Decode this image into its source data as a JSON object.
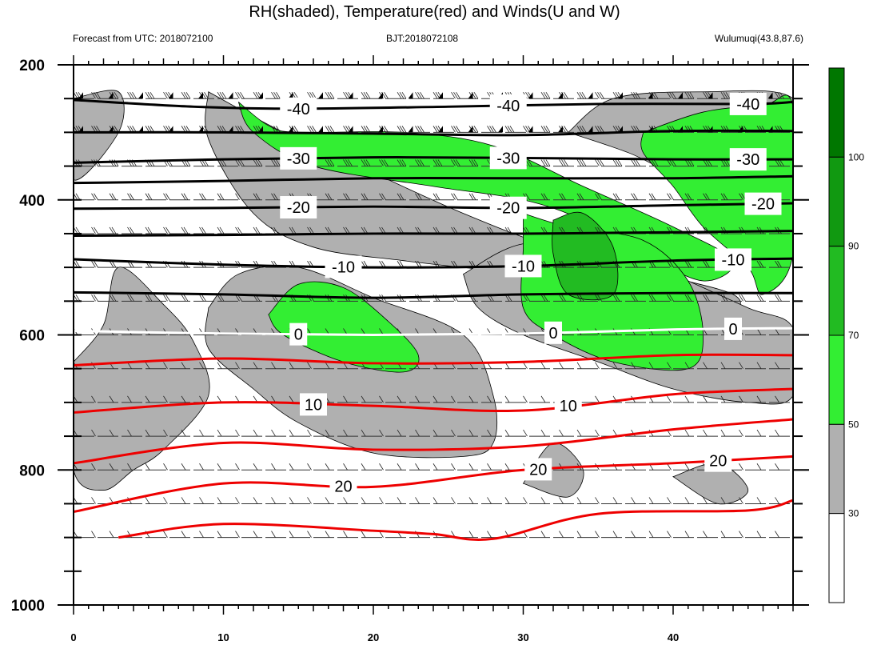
{
  "title": "RH(shaded), Temperature(red) and Winds(U and W)",
  "subtitle_left": "Forecast from UTC: 2018072100",
  "subtitle_center": "BJT:2018072108",
  "subtitle_right": "Wulumuqi(43.8,87.6)",
  "colors": {
    "rh_30_50": "#b0b0b0",
    "rh_50_70": "#33ee33",
    "rh_70_90": "#22bb22",
    "rh_90_100": "#119911",
    "temperature_warm": "#ee0000",
    "temperature_cold": "#000000",
    "zero_isotherm": "#ffffff"
  },
  "chart_data": {
    "type": "contour",
    "x_ticks": [
      0,
      10,
      20,
      30,
      40
    ],
    "xlim": [
      0,
      48
    ],
    "y_ticks": [
      200,
      400,
      600,
      800,
      1000
    ],
    "ylim": [
      1000,
      200
    ],
    "colorbar": {
      "levels": [
        30,
        50,
        70,
        90,
        100
      ],
      "colors": [
        "#ffffff",
        "#b0b0b0",
        "#33ee33",
        "#22bb22",
        "#119911",
        "#007700"
      ]
    },
    "temperature_contours": [
      {
        "value": -40,
        "label": "-40",
        "points": [
          [
            0,
            252
          ],
          [
            8,
            262
          ],
          [
            15,
            265
          ],
          [
            25,
            262
          ],
          [
            35,
            258
          ],
          [
            45,
            258
          ],
          [
            48,
            255
          ]
        ]
      },
      {
        "value": -35,
        "points": [
          [
            0,
            300
          ],
          [
            10,
            300
          ],
          [
            20,
            302
          ],
          [
            30,
            304
          ],
          [
            40,
            298
          ],
          [
            48,
            298
          ]
        ]
      },
      {
        "value": -30,
        "label": "-30",
        "points": [
          [
            0,
            345
          ],
          [
            10,
            340
          ],
          [
            20,
            337
          ],
          [
            30,
            338
          ],
          [
            40,
            340
          ],
          [
            48,
            340
          ]
        ]
      },
      {
        "value": -25,
        "points": [
          [
            0,
            375
          ],
          [
            10,
            372
          ],
          [
            20,
            368
          ],
          [
            30,
            368
          ],
          [
            40,
            368
          ],
          [
            48,
            365
          ]
        ]
      },
      {
        "value": -20,
        "label": "-20",
        "points": [
          [
            0,
            413
          ],
          [
            10,
            412
          ],
          [
            20,
            410
          ],
          [
            30,
            412
          ],
          [
            40,
            408
          ],
          [
            48,
            405
          ]
        ]
      },
      {
        "value": -15,
        "points": [
          [
            0,
            453
          ],
          [
            10,
            452
          ],
          [
            20,
            450
          ],
          [
            30,
            450
          ],
          [
            40,
            448
          ],
          [
            48,
            446
          ]
        ]
      },
      {
        "value": -10,
        "label": "-10",
        "points": [
          [
            0,
            488
          ],
          [
            10,
            496
          ],
          [
            20,
            500
          ],
          [
            30,
            498
          ],
          [
            40,
            490
          ],
          [
            48,
            487
          ]
        ]
      },
      {
        "value": -5,
        "points": [
          [
            0,
            537
          ],
          [
            10,
            540
          ],
          [
            20,
            545
          ],
          [
            30,
            540
          ],
          [
            40,
            538
          ],
          [
            48,
            538
          ]
        ]
      },
      {
        "value": 0,
        "label": "0",
        "points": [
          [
            0,
            594
          ],
          [
            10,
            598
          ],
          [
            20,
            600
          ],
          [
            30,
            598
          ],
          [
            40,
            592
          ],
          [
            48,
            590
          ]
        ]
      },
      {
        "value": 5,
        "points": [
          [
            0,
            645
          ],
          [
            10,
            635
          ],
          [
            20,
            642
          ],
          [
            30,
            640
          ],
          [
            40,
            630
          ],
          [
            48,
            630
          ]
        ]
      },
      {
        "value": 10,
        "label": "10",
        "points": [
          [
            0,
            715
          ],
          [
            10,
            700
          ],
          [
            20,
            705
          ],
          [
            30,
            712
          ],
          [
            40,
            688
          ],
          [
            48,
            680
          ]
        ]
      },
      {
        "value": 15,
        "points": [
          [
            0,
            790
          ],
          [
            10,
            760
          ],
          [
            20,
            770
          ],
          [
            30,
            765
          ],
          [
            40,
            740
          ],
          [
            48,
            725
          ]
        ]
      },
      {
        "value": 20,
        "label": "20",
        "points": [
          [
            0,
            862
          ],
          [
            10,
            820
          ],
          [
            20,
            825
          ],
          [
            30,
            800
          ],
          [
            40,
            790
          ],
          [
            48,
            780
          ]
        ]
      },
      {
        "value": 25,
        "points": [
          [
            3,
            900
          ],
          [
            10,
            880
          ],
          [
            20,
            890
          ],
          [
            24,
            895
          ],
          [
            28,
            902
          ],
          [
            35,
            865
          ],
          [
            45,
            860
          ],
          [
            48,
            845
          ]
        ]
      }
    ],
    "rh_regions": [
      {
        "level": "30-50",
        "points": [
          [
            0,
            250
          ],
          [
            3,
            240
          ],
          [
            3,
            300
          ],
          [
            0,
            370
          ]
        ]
      },
      {
        "level": "30-50",
        "points": [
          [
            9,
            240
          ],
          [
            14,
            300
          ],
          [
            20,
            360
          ],
          [
            26,
            420
          ],
          [
            32,
            470
          ],
          [
            40,
            515
          ],
          [
            44,
            540
          ],
          [
            44,
            560
          ],
          [
            40,
            540
          ],
          [
            34,
            520
          ],
          [
            28,
            505
          ],
          [
            22,
            490
          ],
          [
            16,
            470
          ],
          [
            12,
            420
          ],
          [
            9,
            310
          ]
        ]
      },
      {
        "level": "30-50",
        "points": [
          [
            33,
            300
          ],
          [
            36,
            250
          ],
          [
            42,
            240
          ],
          [
            48,
            250
          ],
          [
            48,
            350
          ],
          [
            44,
            380
          ],
          [
            40,
            360
          ],
          [
            37,
            330
          ]
        ]
      },
      {
        "level": "30-50",
        "points": [
          [
            0,
            640
          ],
          [
            2,
            585
          ],
          [
            3,
            500
          ],
          [
            6,
            555
          ],
          [
            8,
            610
          ],
          [
            9,
            690
          ],
          [
            6,
            770
          ],
          [
            4,
            800
          ],
          [
            2,
            830
          ],
          [
            0,
            800
          ]
        ]
      },
      {
        "level": "30-50",
        "points": [
          [
            9,
            560
          ],
          [
            11,
            510
          ],
          [
            15,
            500
          ],
          [
            20,
            545
          ],
          [
            26,
            600
          ],
          [
            28,
            690
          ],
          [
            28,
            760
          ],
          [
            26,
            780
          ],
          [
            20,
            775
          ],
          [
            15,
            730
          ],
          [
            12,
            680
          ],
          [
            9,
            620
          ]
        ]
      },
      {
        "level": "30-50",
        "points": [
          [
            26,
            510
          ],
          [
            30,
            465
          ],
          [
            36,
            470
          ],
          [
            40,
            510
          ],
          [
            45,
            560
          ],
          [
            48,
            590
          ],
          [
            48,
            690
          ],
          [
            45,
            700
          ],
          [
            40,
            680
          ],
          [
            35,
            640
          ],
          [
            30,
            600
          ],
          [
            27,
            560
          ]
        ]
      },
      {
        "level": "30-50",
        "points": [
          [
            30,
            820
          ],
          [
            32,
            760
          ],
          [
            34,
            800
          ],
          [
            33,
            840
          ]
        ]
      },
      {
        "level": "30-50",
        "points": [
          [
            40,
            810
          ],
          [
            43,
            790
          ],
          [
            45,
            830
          ],
          [
            43,
            850
          ]
        ]
      },
      {
        "level": "50-70",
        "points": [
          [
            11,
            255
          ],
          [
            13,
            290
          ],
          [
            15,
            300
          ],
          [
            22,
            300
          ],
          [
            28,
            320
          ],
          [
            34,
            380
          ],
          [
            40,
            440
          ],
          [
            44,
            490
          ],
          [
            42,
            520
          ],
          [
            38,
            480
          ],
          [
            34,
            430
          ],
          [
            30,
            400
          ],
          [
            24,
            380
          ],
          [
            16,
            350
          ],
          [
            12,
            300
          ]
        ]
      },
      {
        "level": "50-70",
        "points": [
          [
            38,
            300
          ],
          [
            42,
            270
          ],
          [
            46,
            260
          ],
          [
            48,
            262
          ],
          [
            48,
            480
          ],
          [
            46,
            540
          ],
          [
            45,
            500
          ],
          [
            42,
            440
          ],
          [
            40,
            380
          ],
          [
            38,
            330
          ]
        ]
      },
      {
        "level": "50-70",
        "points": [
          [
            13,
            570
          ],
          [
            15,
            525
          ],
          [
            18,
            530
          ],
          [
            21,
            580
          ],
          [
            23,
            630
          ],
          [
            22,
            655
          ],
          [
            18,
            640
          ],
          [
            14,
            600
          ]
        ]
      },
      {
        "level": "50-70",
        "points": [
          [
            30,
            420
          ],
          [
            33,
            440
          ],
          [
            38,
            460
          ],
          [
            41,
            520
          ],
          [
            42,
            600
          ],
          [
            41,
            650
          ],
          [
            36,
            640
          ],
          [
            32,
            600
          ],
          [
            30,
            560
          ],
          [
            30,
            470
          ]
        ]
      },
      {
        "level": "70-90",
        "points": [
          [
            32,
            430
          ],
          [
            34,
            420
          ],
          [
            36,
            470
          ],
          [
            36,
            540
          ],
          [
            33,
            540
          ],
          [
            32,
            480
          ]
        ]
      }
    ],
    "wind_levels": [
      250,
      300,
      350,
      400,
      450,
      500,
      550,
      600,
      650,
      700,
      750,
      800,
      850,
      900
    ]
  }
}
